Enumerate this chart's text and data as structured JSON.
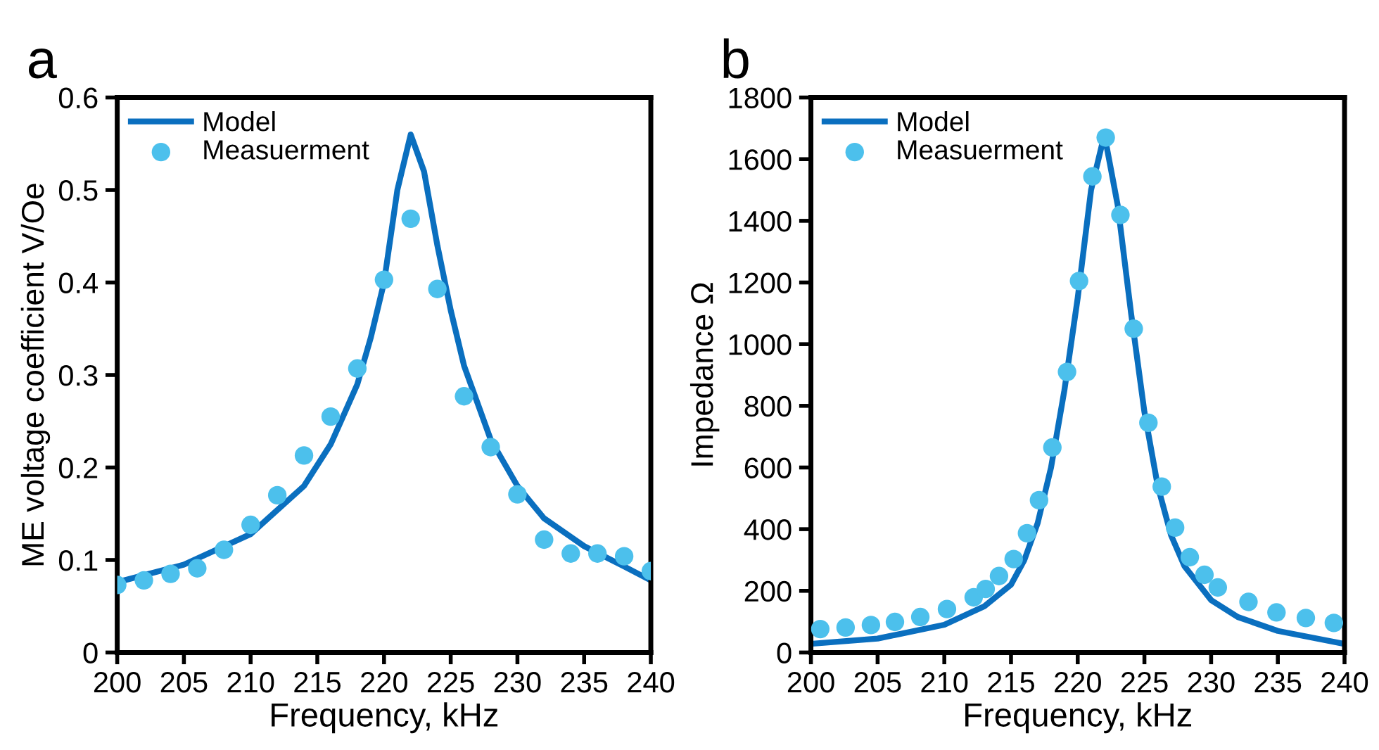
{
  "chart_data": [
    {
      "type": "scatter",
      "title": "a",
      "xlabel": "Frequency, kHz",
      "ylabel": "ME voltage coefficient V/Oe",
      "xlim": [
        200,
        240
      ],
      "ylim": [
        0,
        0.6
      ],
      "xticks": [
        200,
        205,
        210,
        215,
        220,
        225,
        230,
        235,
        240
      ],
      "yticks": [
        0,
        0.1,
        0.2,
        0.3,
        0.4,
        0.5,
        0.6
      ],
      "grid": false,
      "legend": "top left",
      "series": [
        {
          "name": "Model",
          "type": "line",
          "color": "#0a6fbf",
          "marker": "none",
          "line_style": "solid",
          "x": [
            200,
            205,
            210,
            214,
            216,
            218,
            219,
            220,
            221,
            222,
            223,
            224,
            225,
            226,
            228,
            230,
            232,
            235,
            238,
            240
          ],
          "values": [
            0.076,
            0.095,
            0.128,
            0.18,
            0.225,
            0.29,
            0.34,
            0.4,
            0.5,
            0.56,
            0.52,
            0.44,
            0.37,
            0.31,
            0.23,
            0.18,
            0.145,
            0.115,
            0.093,
            0.078
          ]
        },
        {
          "name": "Measuerment",
          "color": "#4cc0ec",
          "marker": "circle",
          "x": [
            200,
            202,
            204,
            206,
            208,
            210,
            212,
            214,
            216,
            218,
            220,
            222,
            224,
            226,
            228,
            230,
            232,
            234,
            236,
            238,
            240
          ],
          "values": [
            0.073,
            0.078,
            0.085,
            0.091,
            0.111,
            0.138,
            0.17,
            0.213,
            0.255,
            0.307,
            0.403,
            0.469,
            0.393,
            0.277,
            0.222,
            0.171,
            0.122,
            0.107,
            0.107,
            0.104,
            0.088
          ]
        }
      ]
    },
    {
      "type": "scatter",
      "title": "b",
      "xlabel": "Frequency, kHz",
      "ylabel": "Impedance Ω",
      "xlim": [
        200,
        240
      ],
      "ylim": [
        0,
        1800
      ],
      "xticks": [
        200,
        205,
        210,
        215,
        220,
        225,
        230,
        235,
        240
      ],
      "yticks": [
        0,
        200,
        400,
        600,
        800,
        1000,
        1200,
        1400,
        1600,
        1800
      ],
      "grid": false,
      "legend": "top left",
      "series": [
        {
          "name": "Model",
          "type": "line",
          "color": "#0a6fbf",
          "marker": "none",
          "line_style": "solid",
          "x": [
            200,
            205,
            210,
            213,
            215,
            216,
            217,
            218,
            219,
            220,
            221,
            222,
            223,
            224,
            225,
            226,
            227,
            228,
            230,
            232,
            235,
            240
          ],
          "values": [
            28,
            45,
            90,
            150,
            220,
            300,
            420,
            600,
            850,
            1150,
            1500,
            1680,
            1450,
            1100,
            780,
            540,
            380,
            280,
            170,
            115,
            70,
            28
          ]
        },
        {
          "name": "Measuerment",
          "color": "#4cc0ec",
          "marker": "circle",
          "x": [
            200.7,
            202.6,
            204.5,
            206.3,
            208.2,
            210.2,
            212.2,
            213.1,
            214.1,
            215.2,
            216.2,
            217.1,
            218.1,
            219.2,
            220.1,
            221.1,
            222.1,
            223.2,
            224.2,
            225.3,
            226.3,
            227.3,
            228.4,
            229.5,
            230.5,
            232.8,
            234.9,
            237.1,
            239.2
          ],
          "values": [
            76,
            81,
            89,
            99,
            115,
            141,
            179,
            206,
            248,
            303,
            387,
            494,
            665,
            910,
            1205,
            1544,
            1670,
            1419,
            1050,
            745,
            538,
            405,
            309,
            252,
            211,
            164,
            130,
            112,
            96
          ]
        }
      ]
    }
  ]
}
